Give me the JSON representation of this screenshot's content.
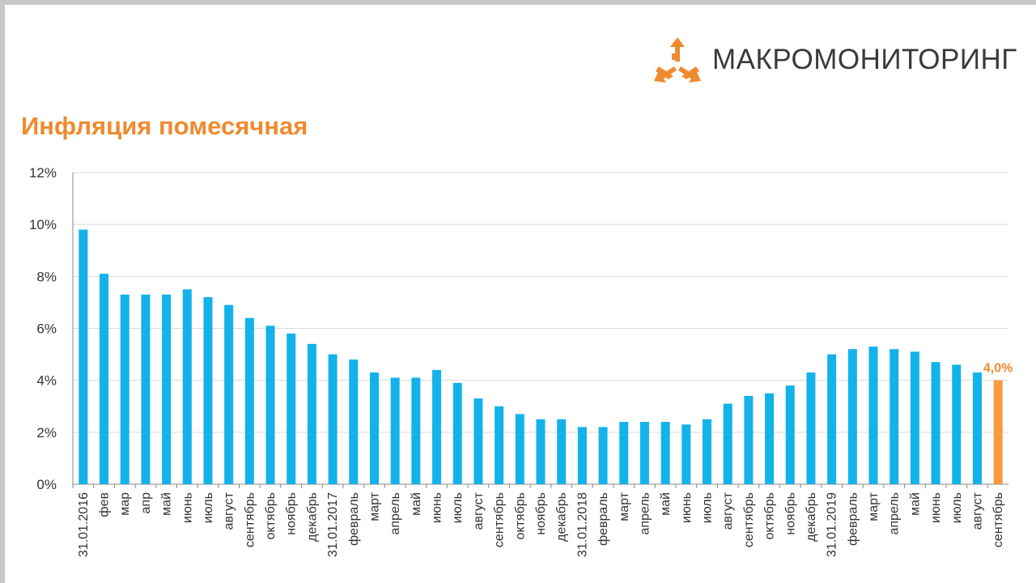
{
  "brand": {
    "name": "МАКРОМОНИТОРИНГ",
    "logo_color": "#ef8a2f"
  },
  "page_title": "Инфляция помесячная",
  "colors": {
    "bar": "#13b2ea",
    "highlight": "#f79a3e",
    "title": "#ef8a2f",
    "gridline": "#d9d9d9",
    "axis": "#888888"
  },
  "chart_data": {
    "type": "bar",
    "title": "Инфляция помесячная",
    "xlabel": "",
    "ylabel": "",
    "ylim": [
      0,
      12
    ],
    "yticks": [
      "0%",
      "2%",
      "4%",
      "6%",
      "8%",
      "10%",
      "12%"
    ],
    "yticks_values": [
      0,
      2,
      4,
      6,
      8,
      10,
      12
    ],
    "grid": true,
    "legend": "none",
    "categories": [
      "31.01.2016",
      "фев",
      "мар",
      "апр",
      "май",
      "июнь",
      "июль",
      "август",
      "сентябрь",
      "октябрь",
      "ноябрь",
      "декабрь",
      "31.01.2017",
      "февраль",
      "март",
      "апрель",
      "май",
      "июнь",
      "июль",
      "август",
      "сентябрь",
      "октябрь",
      "ноябрь",
      "декабрь",
      "31.01.2018",
      "февраль",
      "март",
      "апрель",
      "май",
      "июнь",
      "июль",
      "август",
      "сентябрь",
      "октябрь",
      "ноябрь",
      "декабрь",
      "31.01.2019",
      "февраль",
      "март",
      "апрель",
      "май",
      "июнь",
      "июль",
      "август",
      "сентябрь"
    ],
    "values": [
      9.8,
      8.1,
      7.3,
      7.3,
      7.3,
      7.5,
      7.2,
      6.9,
      6.4,
      6.1,
      5.8,
      5.4,
      5.0,
      4.8,
      4.3,
      4.1,
      4.1,
      4.4,
      3.9,
      3.3,
      3.0,
      2.7,
      2.5,
      2.5,
      2.2,
      2.2,
      2.4,
      2.4,
      2.4,
      2.3,
      2.5,
      3.1,
      3.4,
      3.5,
      3.8,
      4.3,
      5.0,
      5.2,
      5.3,
      5.2,
      5.1,
      4.7,
      4.6,
      4.3,
      4.0
    ],
    "highlight_index": 44,
    "annotations": [
      {
        "category": "сентябрь",
        "value": 4.0,
        "text": "4,0%"
      }
    ]
  }
}
